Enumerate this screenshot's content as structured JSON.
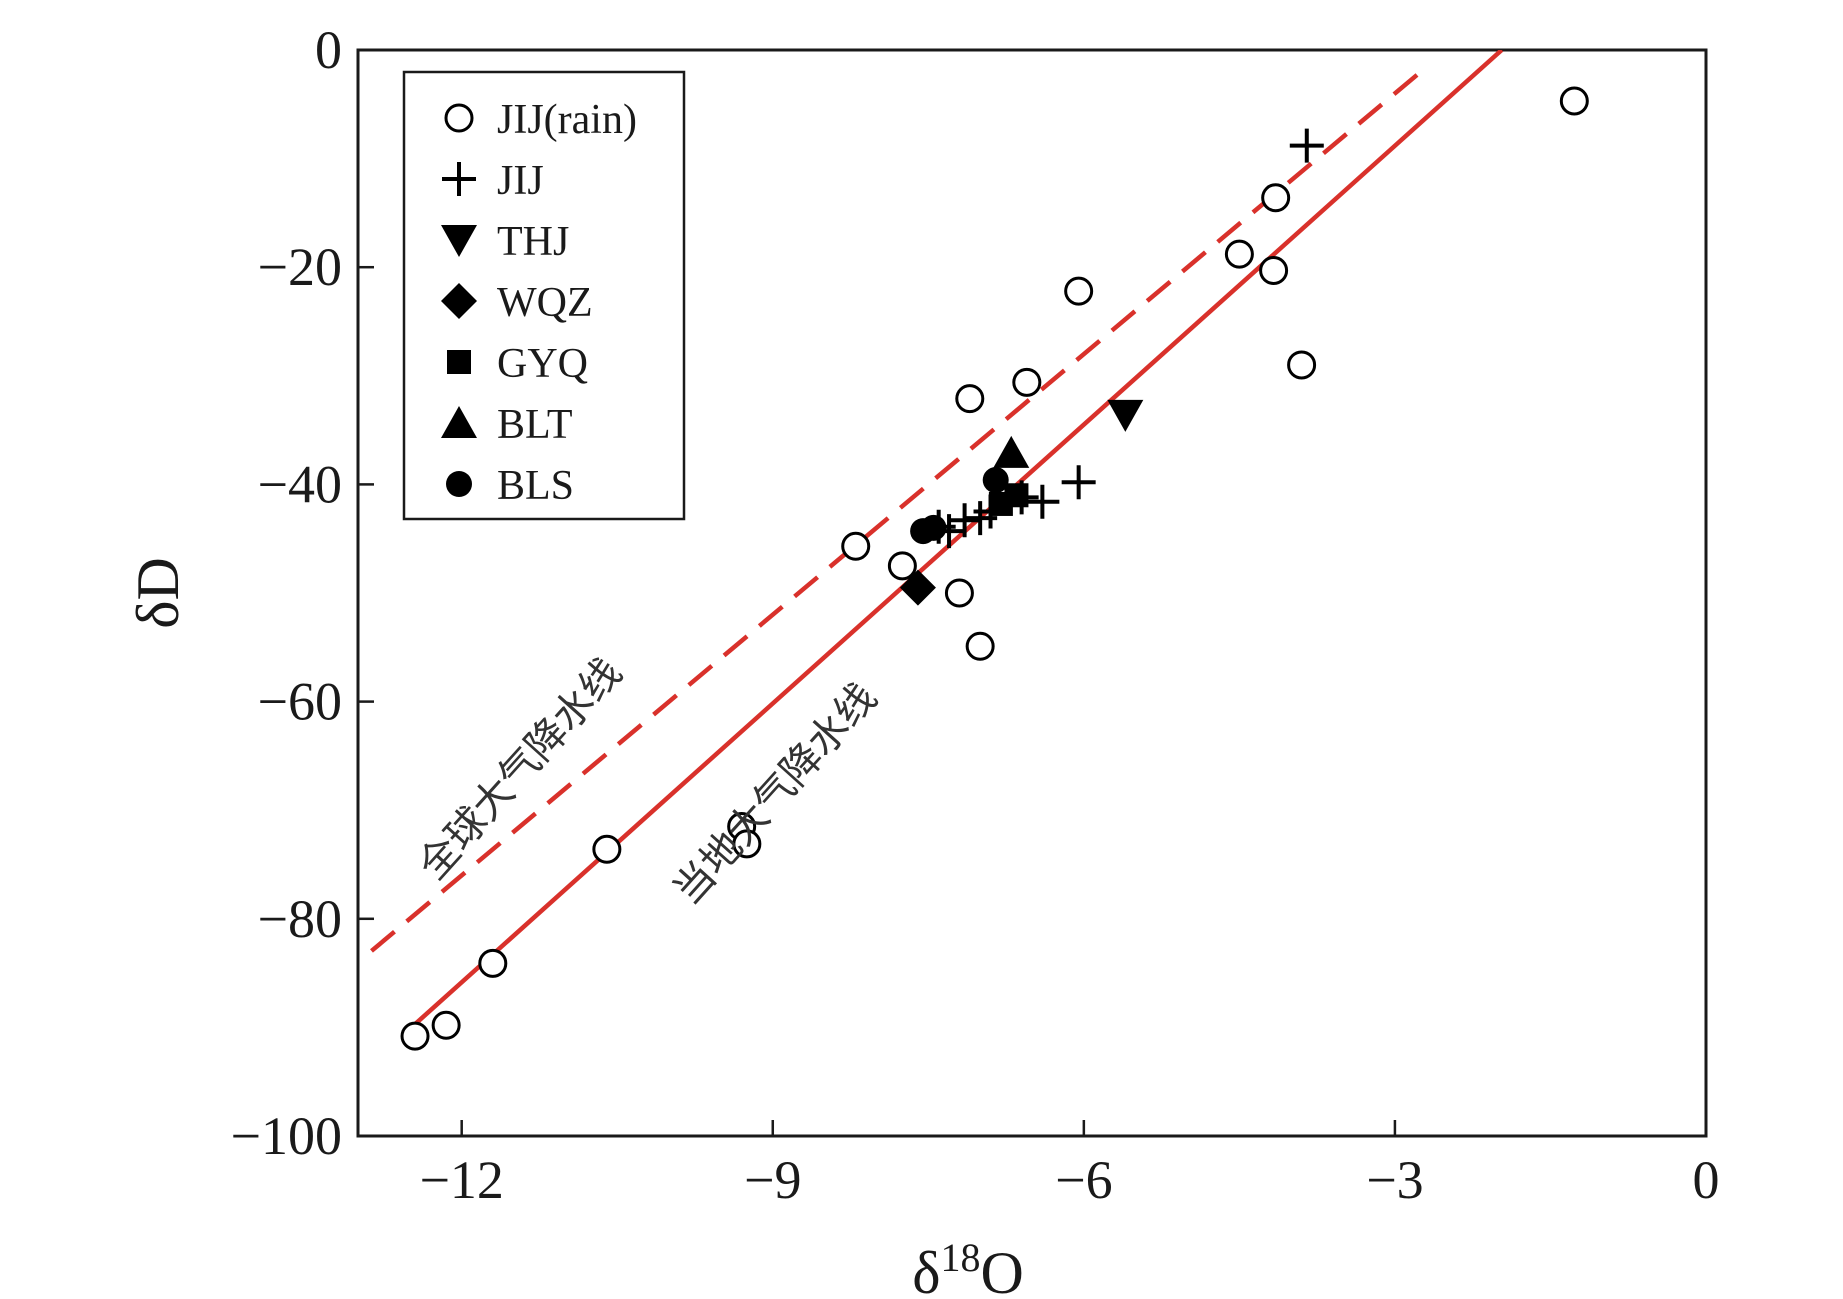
{
  "chart_data": {
    "type": "scatter",
    "xlabel": "δ",
    "xlabel_sup": "18",
    "xlabel_tail": "O",
    "ylabel": "δD",
    "xlim": [
      -13,
      0
    ],
    "ylim": [
      -100,
      0
    ],
    "xticks": [
      -12,
      -9,
      -6,
      -3,
      0
    ],
    "yticks": [
      0,
      -20,
      -40,
      -60,
      -80,
      -100
    ],
    "xtick_labels": [
      "−12",
      "−9",
      "−6",
      "−3",
      "0"
    ],
    "ytick_labels": [
      "0",
      "−20",
      "−40",
      "−60",
      "−80",
      "−100"
    ],
    "legend_position": "top-left",
    "colors": {
      "line": "#d9312b",
      "axis": "#1a1a1a",
      "marker": "#000000"
    },
    "lines": [
      {
        "name": "全球大气降水线",
        "style": "dashed",
        "x": [
          -12.87,
          -2.67
        ],
        "y": [
          -82.96,
          -1.36
        ]
      },
      {
        "name": "当地大气降水线",
        "style": "solid",
        "x": [
          -12.45,
          -1.97
        ],
        "y": [
          -89.7,
          0
        ]
      }
    ],
    "series": [
      {
        "name": "JIJ(rain)",
        "marker": "open-circle",
        "points": [
          [
            -12.45,
            -90.8
          ],
          [
            -12.15,
            -89.8
          ],
          [
            -11.7,
            -84.1
          ],
          [
            -10.6,
            -73.6
          ],
          [
            -9.3,
            -71.5
          ],
          [
            -9.25,
            -73.1
          ],
          [
            -8.2,
            -45.7
          ],
          [
            -7.75,
            -47.5
          ],
          [
            -7.2,
            -50.0
          ],
          [
            -7.0,
            -54.9
          ],
          [
            -7.1,
            -32.1
          ],
          [
            -6.55,
            -30.6
          ],
          [
            -6.05,
            -22.2
          ],
          [
            -4.5,
            -18.8
          ],
          [
            -4.15,
            -13.6
          ],
          [
            -4.17,
            -20.3
          ],
          [
            -3.9,
            -29.0
          ],
          [
            -1.27,
            -4.7
          ]
        ]
      },
      {
        "name": "JIJ",
        "marker": "plus",
        "points": [
          [
            -3.85,
            -8.8
          ],
          [
            -6.05,
            -39.8
          ],
          [
            -6.4,
            -41.6
          ],
          [
            -6.6,
            -41.2
          ],
          [
            -6.9,
            -42.5
          ],
          [
            -7.0,
            -43.1
          ],
          [
            -7.15,
            -43.3
          ],
          [
            -7.3,
            -44.3
          ],
          [
            -7.4,
            -43.9
          ]
        ]
      },
      {
        "name": "THJ",
        "marker": "triangle-down",
        "points": [
          [
            -5.6,
            -33.6
          ]
        ]
      },
      {
        "name": "WQZ",
        "marker": "diamond",
        "points": [
          [
            -7.6,
            -49.5
          ]
        ]
      },
      {
        "name": "GYQ",
        "marker": "square",
        "points": [
          [
            -6.8,
            -41.8
          ],
          [
            -6.65,
            -41.0
          ]
        ]
      },
      {
        "name": "BLT",
        "marker": "triangle-up",
        "points": [
          [
            -6.7,
            -37.1
          ]
        ]
      },
      {
        "name": "BLS",
        "marker": "filled-circle",
        "points": [
          [
            -6.85,
            -39.6
          ],
          [
            -7.55,
            -44.3
          ],
          [
            -7.45,
            -44.0
          ]
        ]
      }
    ]
  }
}
